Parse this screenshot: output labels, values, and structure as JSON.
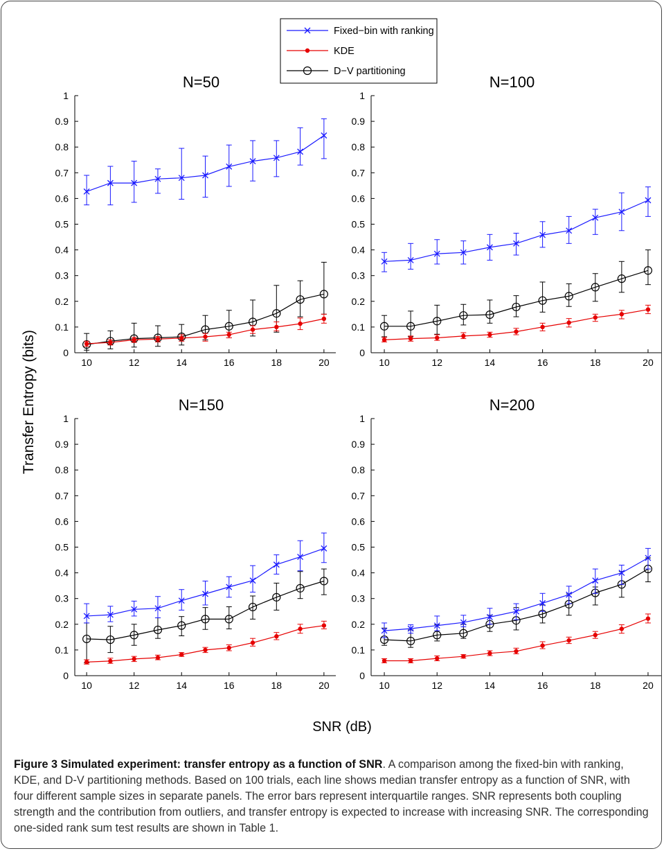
{
  "figure": {
    "caption_title": "Figure 3 Simulated experiment: transfer entropy as a function of SNR",
    "caption_body": ". A comparison among the fixed-bin with ranking, KDE, and D-V partitioning methods. Based on 100 trials, each line shows median transfer entropy as a function of SNR, with four different sample sizes in separate panels. The error bars represent interquartile ranges. SNR represents both coupling strength and the contribution from outliers, and transfer entropy is expected to increase with increasing SNR. The corresponding one-sided rank sum test results are shown in Table 1."
  },
  "chart_data": {
    "type": "line",
    "ylabel": "Transfer Entropy (bits)",
    "xlabel": "SNR (dB)",
    "x": [
      10,
      11,
      12,
      13,
      14,
      15,
      16,
      17,
      18,
      19,
      20
    ],
    "xticks": [
      10,
      12,
      14,
      16,
      18,
      20
    ],
    "yticks": [
      0,
      0.1,
      0.2,
      0.3,
      0.4,
      0.5,
      0.6,
      0.7,
      0.8,
      0.9,
      1
    ],
    "xlim": [
      9.5,
      20.5
    ],
    "ylim": [
      0,
      1
    ],
    "legend_position": "top-center",
    "legend": [
      {
        "name": "Fixed−bin with ranking",
        "color": "#1a1aff",
        "marker": "x"
      },
      {
        "name": "KDE",
        "color": "#e60000",
        "marker": "dot"
      },
      {
        "name": "D−V partitioning",
        "color": "#000000",
        "marker": "circle"
      }
    ],
    "panels": [
      {
        "title": "N=50",
        "series": [
          {
            "values": [
              0.627,
              0.66,
              0.66,
              0.676,
              0.68,
              0.69,
              0.724,
              0.745,
              0.758,
              0.782,
              0.845
            ],
            "lower": [
              0.575,
              0.575,
              0.585,
              0.62,
              0.597,
              0.605,
              0.647,
              0.668,
              0.685,
              0.73,
              0.755
            ],
            "upper": [
              0.69,
              0.725,
              0.745,
              0.715,
              0.795,
              0.765,
              0.808,
              0.825,
              0.825,
              0.875,
              0.91
            ]
          },
          {
            "values": [
              0.035,
              0.04,
              0.05,
              0.053,
              0.057,
              0.062,
              0.07,
              0.09,
              0.1,
              0.113,
              0.132
            ],
            "lower": [
              0.025,
              0.03,
              0.04,
              0.042,
              0.045,
              0.045,
              0.058,
              0.075,
              0.085,
              0.09,
              0.115
            ],
            "upper": [
              0.045,
              0.05,
              0.06,
              0.063,
              0.07,
              0.075,
              0.08,
              0.105,
              0.12,
              0.135,
              0.15
            ]
          },
          {
            "values": [
              0.032,
              0.045,
              0.055,
              0.058,
              0.062,
              0.09,
              0.103,
              0.12,
              0.153,
              0.207,
              0.228
            ],
            "lower": [
              0.01,
              0.015,
              0.022,
              0.025,
              0.03,
              0.05,
              0.058,
              0.065,
              0.08,
              0.14,
              0.15
            ],
            "upper": [
              0.075,
              0.085,
              0.115,
              0.105,
              0.11,
              0.145,
              0.165,
              0.205,
              0.262,
              0.28,
              0.352
            ]
          }
        ]
      },
      {
        "title": "N=100",
        "series": [
          {
            "values": [
              0.355,
              0.36,
              0.385,
              0.39,
              0.41,
              0.425,
              0.458,
              0.475,
              0.525,
              0.548,
              0.593
            ],
            "lower": [
              0.315,
              0.325,
              0.345,
              0.345,
              0.36,
              0.38,
              0.41,
              0.425,
              0.46,
              0.475,
              0.53
            ],
            "upper": [
              0.39,
              0.425,
              0.44,
              0.435,
              0.46,
              0.465,
              0.51,
              0.53,
              0.558,
              0.622,
              0.645
            ]
          },
          {
            "values": [
              0.05,
              0.055,
              0.058,
              0.065,
              0.07,
              0.082,
              0.1,
              0.117,
              0.137,
              0.15,
              0.168
            ],
            "lower": [
              0.042,
              0.045,
              0.048,
              0.055,
              0.06,
              0.07,
              0.085,
              0.1,
              0.122,
              0.132,
              0.152
            ],
            "upper": [
              0.06,
              0.065,
              0.07,
              0.078,
              0.08,
              0.095,
              0.115,
              0.133,
              0.15,
              0.165,
              0.185
            ]
          },
          {
            "values": [
              0.103,
              0.103,
              0.123,
              0.145,
              0.148,
              0.178,
              0.203,
              0.22,
              0.255,
              0.288,
              0.32
            ],
            "lower": [
              0.062,
              0.062,
              0.072,
              0.108,
              0.115,
              0.14,
              0.158,
              0.18,
              0.2,
              0.235,
              0.265
            ],
            "upper": [
              0.145,
              0.162,
              0.185,
              0.188,
              0.205,
              0.222,
              0.275,
              0.268,
              0.308,
              0.355,
              0.4
            ]
          }
        ]
      },
      {
        "title": "N=150",
        "series": [
          {
            "values": [
              0.232,
              0.237,
              0.258,
              0.262,
              0.292,
              0.318,
              0.345,
              0.37,
              0.432,
              0.462,
              0.495
            ],
            "lower": [
              0.205,
              0.21,
              0.232,
              0.225,
              0.255,
              0.275,
              0.305,
              0.325,
              0.395,
              0.408,
              0.44
            ],
            "upper": [
              0.28,
              0.27,
              0.29,
              0.308,
              0.335,
              0.368,
              0.385,
              0.428,
              0.47,
              0.525,
              0.555
            ]
          },
          {
            "values": [
              0.053,
              0.057,
              0.065,
              0.07,
              0.082,
              0.1,
              0.108,
              0.128,
              0.153,
              0.182,
              0.195
            ],
            "lower": [
              0.045,
              0.048,
              0.055,
              0.062,
              0.075,
              0.09,
              0.097,
              0.115,
              0.14,
              0.165,
              0.182
            ],
            "upper": [
              0.062,
              0.068,
              0.075,
              0.08,
              0.09,
              0.11,
              0.12,
              0.145,
              0.168,
              0.2,
              0.212
            ]
          },
          {
            "values": [
              0.143,
              0.14,
              0.158,
              0.178,
              0.195,
              0.22,
              0.22,
              0.267,
              0.305,
              0.34,
              0.368
            ],
            "lower": [
              0.05,
              0.09,
              0.118,
              0.145,
              0.155,
              0.18,
              0.182,
              0.22,
              0.255,
              0.3,
              0.315
            ],
            "upper": [
              0.205,
              0.192,
              0.2,
              0.225,
              0.23,
              0.265,
              0.268,
              0.31,
              0.36,
              0.405,
              0.415
            ]
          }
        ]
      },
      {
        "title": "N=200",
        "series": [
          {
            "values": [
              0.175,
              0.183,
              0.195,
              0.207,
              0.228,
              0.25,
              0.282,
              0.315,
              0.37,
              0.4,
              0.458
            ],
            "lower": [
              0.148,
              0.165,
              0.175,
              0.19,
              0.2,
              0.218,
              0.25,
              0.28,
              0.32,
              0.355,
              0.415
            ],
            "upper": [
              0.205,
              0.198,
              0.232,
              0.235,
              0.262,
              0.28,
              0.32,
              0.348,
              0.415,
              0.43,
              0.495
            ]
          },
          {
            "values": [
              0.058,
              0.058,
              0.067,
              0.075,
              0.087,
              0.095,
              0.117,
              0.137,
              0.158,
              0.182,
              0.222
            ],
            "lower": [
              0.05,
              0.05,
              0.058,
              0.068,
              0.078,
              0.085,
              0.105,
              0.125,
              0.145,
              0.165,
              0.205
            ],
            "upper": [
              0.066,
              0.066,
              0.077,
              0.082,
              0.097,
              0.107,
              0.132,
              0.15,
              0.172,
              0.198,
              0.24
            ]
          },
          {
            "values": [
              0.14,
              0.135,
              0.158,
              0.165,
              0.2,
              0.215,
              0.24,
              0.278,
              0.322,
              0.355,
              0.415
            ],
            "lower": [
              0.118,
              0.11,
              0.135,
              0.145,
              0.172,
              0.178,
              0.205,
              0.235,
              0.275,
              0.305,
              0.365
            ],
            "upper": [
              0.185,
              0.178,
              0.198,
              0.2,
              0.235,
              0.265,
              0.275,
              0.318,
              0.345,
              0.405,
              0.458
            ]
          }
        ]
      }
    ]
  }
}
